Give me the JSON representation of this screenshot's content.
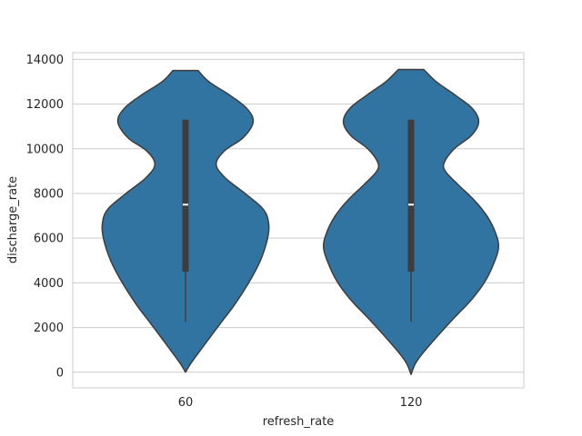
{
  "chart_data": {
    "type": "violin",
    "xlabel": "refresh_rate",
    "ylabel": "discharge_rate",
    "ylim": [
      -700,
      14300
    ],
    "yticks": [
      0,
      2000,
      4000,
      6000,
      8000,
      10000,
      12000,
      14000
    ],
    "grid": true,
    "categories": [
      "60",
      "120"
    ],
    "fill_color": "#3274a1",
    "edge_color": "#3d3d3d",
    "violins": [
      {
        "category": "60",
        "range": [
          0,
          13500
        ],
        "quartiles": [
          4500,
          7500,
          11300
        ],
        "whisker": [
          2250,
          11300
        ],
        "density_profile": [
          [
            0,
            0.0
          ],
          [
            400,
            0.06
          ],
          [
            900,
            0.15
          ],
          [
            1500,
            0.26
          ],
          [
            2200,
            0.39
          ],
          [
            3000,
            0.54
          ],
          [
            4000,
            0.7
          ],
          [
            5000,
            0.83
          ],
          [
            6000,
            0.91
          ],
          [
            6700,
            0.92
          ],
          [
            7300,
            0.86
          ],
          [
            8000,
            0.66
          ],
          [
            8700,
            0.44
          ],
          [
            9300,
            0.34
          ],
          [
            9900,
            0.43
          ],
          [
            10500,
            0.64
          ],
          [
            11200,
            0.75
          ],
          [
            11800,
            0.68
          ],
          [
            12400,
            0.49
          ],
          [
            13000,
            0.26
          ],
          [
            13500,
            0.14
          ]
        ]
      },
      {
        "category": "120",
        "range": [
          -100,
          13550
        ],
        "quartiles": [
          4500,
          7500,
          11300
        ],
        "whisker": [
          2250,
          11300
        ],
        "density_profile": [
          [
            -100,
            0.0
          ],
          [
            400,
            0.05
          ],
          [
            900,
            0.14
          ],
          [
            1600,
            0.29
          ],
          [
            2400,
            0.47
          ],
          [
            3200,
            0.66
          ],
          [
            4000,
            0.81
          ],
          [
            4800,
            0.91
          ],
          [
            5600,
            0.97
          ],
          [
            6300,
            0.93
          ],
          [
            7000,
            0.84
          ],
          [
            7700,
            0.7
          ],
          [
            8400,
            0.52
          ],
          [
            9000,
            0.38
          ],
          [
            9400,
            0.37
          ],
          [
            10000,
            0.48
          ],
          [
            10600,
            0.67
          ],
          [
            11200,
            0.75
          ],
          [
            11800,
            0.68
          ],
          [
            12400,
            0.49
          ],
          [
            13000,
            0.28
          ],
          [
            13550,
            0.14
          ]
        ]
      }
    ]
  }
}
